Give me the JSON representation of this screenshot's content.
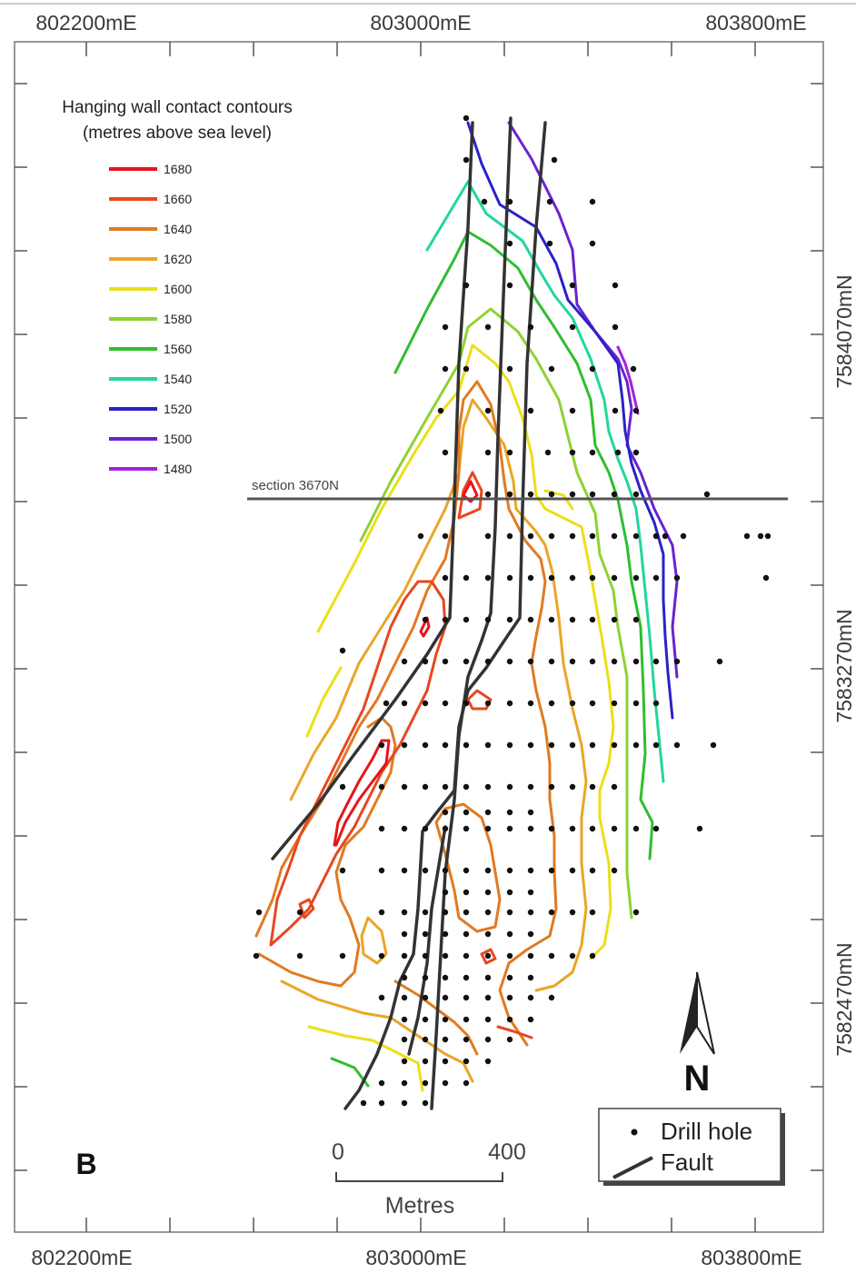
{
  "map": {
    "easting_labels": [
      "802200mE",
      "803000mE",
      "803800mE"
    ],
    "northing_labels": [
      "7584070mN",
      "7583270mN",
      "7582470mN"
    ],
    "panel_label": "B",
    "north_label": "N",
    "section_label": "section 3670N"
  },
  "legend": {
    "title_line1": "Hanging wall contact contours",
    "title_line2": "(metres above sea level)",
    "items": [
      {
        "label": "1680",
        "color": "#e8141a"
      },
      {
        "label": "1660",
        "color": "#e8471f"
      },
      {
        "label": "1640",
        "color": "#e07a22"
      },
      {
        "label": "1620",
        "color": "#eaa626"
      },
      {
        "label": "1600",
        "color": "#ecdf1a"
      },
      {
        "label": "1580",
        "color": "#8fd233"
      },
      {
        "label": "1560",
        "color": "#2fbe2f"
      },
      {
        "label": "1540",
        "color": "#22d79c"
      },
      {
        "label": "1520",
        "color": "#2a22c8"
      },
      {
        "label": "1500",
        "color": "#6a22d0"
      },
      {
        "label": "1480",
        "color": "#a322d8"
      }
    ]
  },
  "scale": {
    "start": "0",
    "end": "400",
    "unit": "Metres"
  },
  "key": {
    "drill_hole": "Drill hole",
    "fault": "Fault"
  }
}
